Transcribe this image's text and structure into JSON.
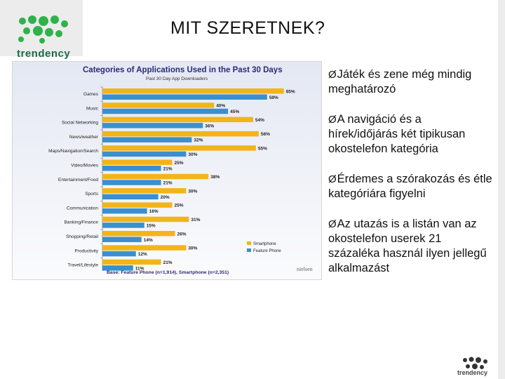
{
  "slide": {
    "title": "MIT SZERETNEK?",
    "logo_text": "trendency",
    "bottom_logo_text": "trendency"
  },
  "bullets": [
    "Játék és zene még mindig meghatározó",
    "A navigáció és a hírek/időjárás két tipikusan okostelefon kategória",
    "Érdemes a szórakozás és étle kategóriára figyelni",
    "Az utazás is a listán van az okostelefon userek 21 százaléka használ ilyen jellegű alkalmazást"
  ],
  "colors": {
    "logo_green": "#2fb24a",
    "logo_dark": "#1c6b4a",
    "smartphone": "#f2b519",
    "feature_phone": "#3a8fd0",
    "chart_title": "#2a2a7a"
  },
  "chart_data": {
    "type": "bar",
    "orientation": "horizontal",
    "title": "Categories of Applications Used in the Past 30 Days",
    "subtitle": "Past 30 Day App Downloaders",
    "base_note": "Base: Feature Phone (n=1,914), Smartphone (n=2,351)",
    "source_logo": "nielsen",
    "legend_position": "bottom-right",
    "categories": [
      "Games",
      "Music",
      "Social Networking",
      "News/weather",
      "Maps/Navigation/Search",
      "Video/Movies",
      "Entertainment/Food",
      "Sports",
      "Communication",
      "Banking/Finance",
      "Shopping/Retail",
      "Productivity",
      "Travel/Lifestyle"
    ],
    "series": [
      {
        "name": "Smartphone",
        "values": [
          65,
          40,
          54,
          56,
          55,
          25,
          38,
          30,
          25,
          31,
          26,
          30,
          21
        ]
      },
      {
        "name": "Feature Phone",
        "values": [
          59,
          45,
          36,
          32,
          30,
          21,
          21,
          20,
          16,
          15,
          14,
          12,
          11
        ]
      }
    ],
    "value_labels": {
      "Smartphone": [
        "65%",
        "40%",
        "54%",
        "56%",
        "55%",
        "25%",
        "38%",
        "30%",
        "25%",
        "31%",
        "26%",
        "30%",
        "21%"
      ],
      "Feature Phone": [
        "59%",
        "45%",
        "36%",
        "32%",
        "30%",
        "21%",
        "21%",
        "20%",
        "16%",
        "15%",
        "14%",
        "12%",
        "11%"
      ]
    },
    "xlim": [
      0,
      70
    ]
  }
}
